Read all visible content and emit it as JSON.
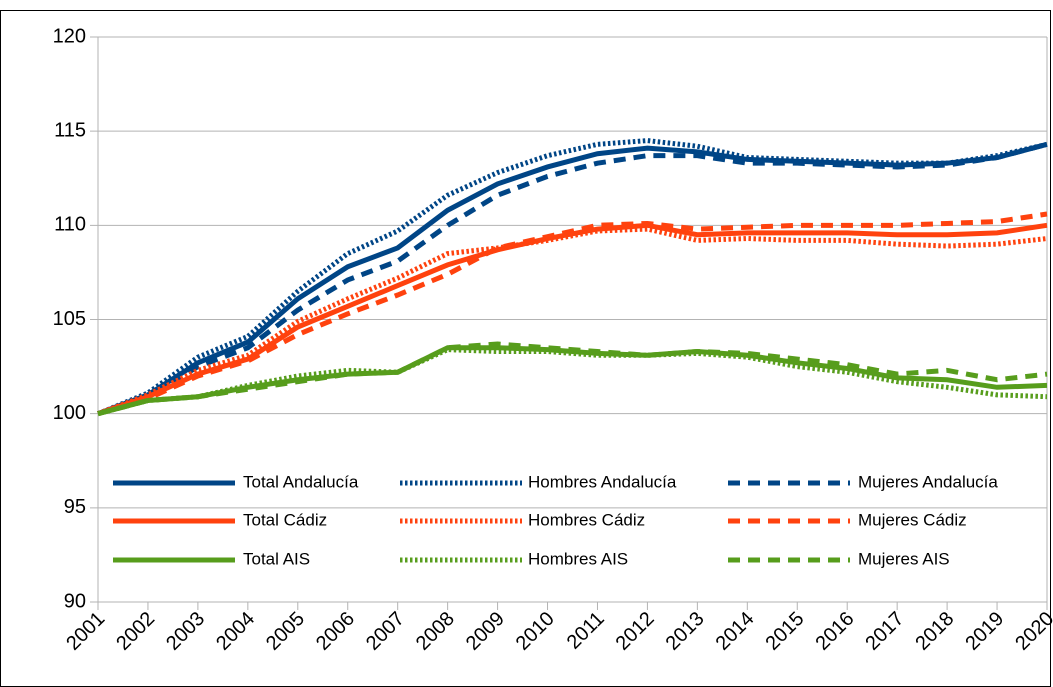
{
  "chart_data": {
    "type": "line",
    "categories": [
      "2001",
      "2002",
      "2003",
      "2004",
      "2005",
      "2006",
      "2007",
      "2008",
      "2009",
      "2010",
      "2011",
      "2012",
      "2013",
      "2014",
      "2015",
      "2016",
      "2017",
      "2018",
      "2019",
      "2020"
    ],
    "ylim": [
      90,
      120
    ],
    "yticks": [
      90,
      95,
      100,
      105,
      110,
      115,
      120
    ],
    "grid": true,
    "legend": "inside-bottom",
    "series": [
      {
        "name": "Total Andalucía",
        "color": "#004586",
        "dash": "solid",
        "values": [
          100,
          101,
          102.7,
          103.8,
          106.1,
          107.8,
          108.8,
          110.8,
          112.2,
          113.1,
          113.8,
          114.1,
          113.9,
          113.5,
          113.4,
          113.3,
          113.2,
          113.3,
          113.6,
          114.3
        ]
      },
      {
        "name": "Hombres Andalucía",
        "color": "#004586",
        "dash": "dotted",
        "values": [
          100,
          101.1,
          103,
          104.1,
          106.5,
          108.5,
          109.7,
          111.6,
          112.8,
          113.7,
          114.3,
          114.5,
          114.2,
          113.6,
          113.5,
          113.4,
          113.3,
          113.3,
          113.7,
          114.3
        ]
      },
      {
        "name": "Mujeres Andalucía",
        "color": "#004586",
        "dash": "dashed",
        "values": [
          100,
          100.9,
          102.5,
          103.5,
          105.5,
          107.1,
          108.1,
          110,
          111.6,
          112.6,
          113.3,
          113.7,
          113.7,
          113.3,
          113.3,
          113.2,
          113.1,
          113.2,
          113.6,
          114.3
        ]
      },
      {
        "name": "Total Cádiz",
        "color": "#ff420e",
        "dash": "solid",
        "values": [
          100,
          100.9,
          102.1,
          102.9,
          104.6,
          105.7,
          106.8,
          107.9,
          108.7,
          109.3,
          109.8,
          110,
          109.5,
          109.6,
          109.6,
          109.6,
          109.5,
          109.5,
          109.6,
          110
        ]
      },
      {
        "name": "Hombres Cádiz",
        "color": "#ff420e",
        "dash": "dotted",
        "values": [
          100,
          101,
          102.3,
          103.1,
          104.9,
          106.1,
          107.2,
          108.5,
          108.8,
          109.2,
          109.7,
          109.8,
          109.2,
          109.3,
          109.2,
          109.2,
          109,
          108.9,
          109,
          109.3
        ]
      },
      {
        "name": "Mujeres Cádiz",
        "color": "#ff420e",
        "dash": "dashed",
        "values": [
          100,
          100.8,
          102,
          102.8,
          104.2,
          105.3,
          106.3,
          107.4,
          108.8,
          109.4,
          110,
          110.1,
          109.8,
          109.9,
          110,
          110,
          110,
          110.1,
          110.2,
          110.6
        ]
      },
      {
        "name": "Total AIS",
        "color": "#579d1c",
        "dash": "solid",
        "values": [
          100,
          100.7,
          100.9,
          101.4,
          101.8,
          102.1,
          102.2,
          103.5,
          103.5,
          103.4,
          103.2,
          103.1,
          103.3,
          103.1,
          102.7,
          102.4,
          101.9,
          101.8,
          101.4,
          101.5
        ]
      },
      {
        "name": "Hombres AIS",
        "color": "#579d1c",
        "dash": "dotted",
        "values": [
          100,
          100.7,
          100.9,
          101.5,
          102,
          102.3,
          102.2,
          103.4,
          103.3,
          103.3,
          103.1,
          103.1,
          103.2,
          103,
          102.5,
          102.2,
          101.7,
          101.4,
          101,
          100.9
        ]
      },
      {
        "name": "Mujeres AIS",
        "color": "#579d1c",
        "dash": "dashed",
        "values": [
          100,
          100.7,
          100.9,
          101.3,
          101.7,
          102.1,
          102.2,
          103.5,
          103.7,
          103.5,
          103.3,
          103.1,
          103.3,
          103.2,
          102.9,
          102.6,
          102.1,
          102.3,
          101.8,
          102.1
        ]
      }
    ]
  }
}
